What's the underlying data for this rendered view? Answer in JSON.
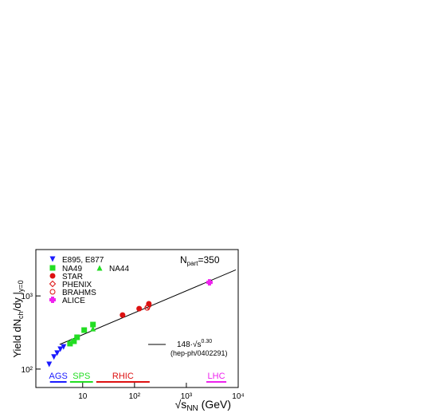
{
  "chart_data": {
    "type": "scatter",
    "x_label": [
      "√s",
      "NN",
      " (GeV)"
    ],
    "y_label": [
      "Yield dN",
      "ch",
      "/dy |",
      "y=0"
    ],
    "annotation": [
      "N",
      "part",
      "=350"
    ],
    "fit_label": [
      "148·√s",
      "0.30"
    ],
    "fit_reference": "(hep-ph/0402291)",
    "xscale": "log",
    "yscale": "log",
    "xlim": [
      1.25,
      10000
    ],
    "ylim": [
      56,
      4300
    ],
    "xticks": [
      10,
      {
        "value": 100,
        "label": "10²"
      },
      {
        "value": 1000,
        "label": "10³"
      },
      {
        "value": 10000,
        "label": "10⁴"
      }
    ],
    "yticks": [
      {
        "value": 100,
        "label": "10²"
      },
      {
        "value": 1000,
        "label": "10³"
      }
    ],
    "series": [
      {
        "name": "E895, E877",
        "color": "#1a1aff",
        "marker": "tri-down",
        "x": [
          2.26,
          2.79,
          3.22,
          3.71,
          4.28
        ],
        "values": [
          116,
          146,
          165,
          187,
          201
        ]
      },
      {
        "name": "NA49",
        "color": "#22dd22",
        "marker": "square",
        "x": [
          5.7,
          6.8,
          7.8,
          10.7,
          15.8
        ],
        "values": [
          223,
          240,
          272,
          341,
          406
        ]
      },
      {
        "name": "NA44",
        "color": "#22dd22",
        "marker": "tri-up",
        "x": [
          15.8
        ],
        "values": [
          357
        ]
      },
      {
        "name": "STAR",
        "color": "#dd1111",
        "marker": "circle",
        "x": [
          58.8,
          123,
          189
        ],
        "values": [
          548,
          670,
          781
        ]
      },
      {
        "name": "PHENIX",
        "color": "#dd1111",
        "marker": "diamond-open",
        "x": [
          183
        ],
        "values": [
          722
        ]
      },
      {
        "name": "BRAHMS",
        "color": "#dd1111",
        "marker": "circle-open",
        "x": [
          176
        ],
        "values": [
          687
        ]
      },
      {
        "name": "ALICE",
        "color": "#ee22ee",
        "marker": "plus",
        "x": [
          2790
        ],
        "values": [
          1530
        ]
      }
    ],
    "fit": {
      "color": "#000000",
      "x": [
        3.6,
        9000
      ],
      "values": [
        217,
        2270
      ]
    },
    "bands": [
      {
        "name": "AGS",
        "color": "#1a1aff",
        "x": [
          2.34,
          4.9
        ]
      },
      {
        "name": "SPS",
        "color": "#22dd22",
        "x": [
          5.7,
          15.8
        ]
      },
      {
        "name": "RHIC",
        "color": "#dd1111",
        "x": [
          18.3,
          196
        ]
      },
      {
        "name": "LHC",
        "color": "#ee22ee",
        "x": [
          2430,
          5900
        ]
      }
    ]
  }
}
